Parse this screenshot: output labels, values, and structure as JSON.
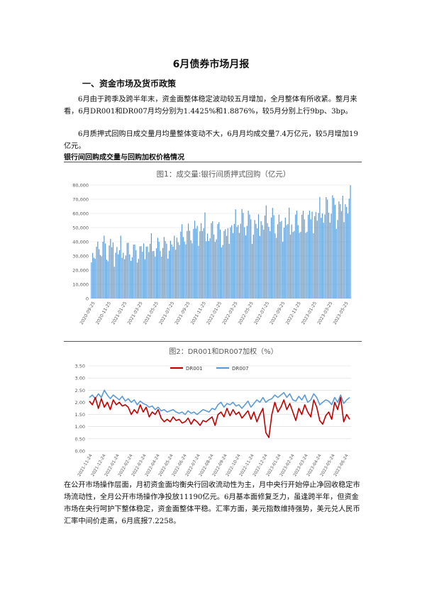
{
  "document": {
    "title": "6月债券市场月报",
    "section1_heading": "一、资金市场及货币政策",
    "para1": "6月由于跨季及跨半年末，资金面整体稳定波动较五月增加，全月整体有所收紧。整月来看，6月DR001和DR007月均分别为1.4425%和1.8876%，较5月分别上行9bp、3bp。",
    "para2": "6月质押式回购日成交量月均量整体变动不大，6月月均成交量7.4万亿元，较5月增加19亿元。",
    "figure_caption": "银行间回购成交量与回购加权价格情况",
    "para3": "在公开市场操作层面，月初资金面均衡央行回收流动性为主，月中央行开始停止净回收稳定市场流动性，全月公开市场操作净投放11190亿元。6月基本面修复乏力，虽逢跨半年，但资金市场在央行呵护下整体稳定，资金面整体平稳。汇率方面，美元指数维持强势，美元兑人民币汇率中间价走高，6月底报7.2258。"
  },
  "chart_data": [
    {
      "type": "bar",
      "title": "图1：成交量:银行间质押式回购（亿元）",
      "color": "#5B9BD5",
      "ylim": [
        0,
        80000
      ],
      "yticks": [
        "0",
        "10,000",
        "20,000",
        "30,000",
        "40,000",
        "50,000",
        "60,000",
        "70,000",
        "80,000"
      ],
      "x_tick_labels": [
        "2020-09-25",
        "2020-11-25",
        "2021-01-25",
        "2021-03-25",
        "2021-05-25",
        "2021-07-25",
        "2021-09-25",
        "2021-11-25",
        "2022-01-25",
        "2022-03-25",
        "2022-05-25",
        "2022-07-25",
        "2022-09-25",
        "2022-11-25",
        "2023-01-25",
        "2023-03-25",
        "2023-05-25"
      ],
      "monthly_peak": [
        41000,
        48000,
        49000,
        45000,
        42000,
        43000,
        44000,
        46000,
        45000,
        48000,
        47000,
        53000,
        56000,
        61000,
        62000,
        57000,
        59000,
        56000,
        63000,
        66000,
        68000,
        64000,
        66000,
        67000,
        65000,
        66000,
        64000,
        67000,
        70000,
        72000,
        75000,
        80000,
        79000,
        80000
      ],
      "monthly_trough": [
        21000,
        24000,
        23000,
        22000,
        22000,
        23000,
        24000,
        26000,
        25000,
        27000,
        28000,
        30000,
        33000,
        36000,
        37000,
        33000,
        35000,
        34000,
        37000,
        40000,
        41000,
        38000,
        40000,
        42000,
        40000,
        40000,
        38000,
        40000,
        43000,
        45000,
        46000,
        49000,
        48000,
        50000
      ],
      "grid": true
    },
    {
      "type": "line",
      "title": "图2：DR001和DR007加权（%）",
      "ylim": [
        0,
        3.5
      ],
      "yticks": [
        "0.00",
        "0.50",
        "1.00",
        "1.50",
        "2.00",
        "2.50",
        "3.00",
        "3.50"
      ],
      "x_tick_labels": [
        "2021-11-24",
        "2021-12-24",
        "2022-01-24",
        "2022-02-24",
        "2022-03-24",
        "2022-04-24",
        "2022-05-24",
        "2022-06-24",
        "2022-07-24",
        "2022-08-24",
        "2022-09-24",
        "2022-10-24",
        "2022-11-24",
        "2022-12-24",
        "2023-01-24",
        "2023-02-24",
        "2023-03-24",
        "2023-04-24",
        "2023-05-24",
        "2023-06-24"
      ],
      "series": [
        {
          "name": "DR001",
          "color": "#C00000",
          "values": [
            2.05,
            1.9,
            2.2,
            1.75,
            2.15,
            1.8,
            2.0,
            1.7,
            2.1,
            1.9,
            2.0,
            1.85,
            1.9,
            1.8,
            1.5,
            1.7,
            1.55,
            1.9,
            1.6,
            1.8,
            1.4,
            1.6,
            1.5,
            1.7,
            1.35,
            1.2,
            1.3,
            1.2,
            1.4,
            1.25,
            1.3,
            1.15,
            1.2,
            1.35,
            1.1,
            1.3,
            1.2,
            1.05,
            1.25,
            1.2,
            1.3,
            1.4,
            1.05,
            1.5,
            1.6,
            1.4,
            1.75,
            1.45,
            1.7,
            1.5,
            1.6,
            1.35,
            1.5,
            1.65,
            1.3,
            1.6,
            1.2,
            1.5,
            1.75,
            0.75,
            0.55,
            1.5,
            2.0,
            1.6,
            1.8,
            2.1,
            1.7,
            1.95,
            1.6,
            1.25,
            1.75,
            1.5,
            1.9,
            1.6,
            1.4,
            2.1,
            1.8,
            1.25,
            1.1,
            1.45,
            1.6,
            1.3,
            2.0,
            1.7,
            2.2,
            1.2,
            1.5,
            1.3
          ]
        },
        {
          "name": "DR007",
          "color": "#5B9BD5",
          "values": [
            2.2,
            2.3,
            2.15,
            2.35,
            2.2,
            2.5,
            2.3,
            2.15,
            2.3,
            2.2,
            2.1,
            2.25,
            2.05,
            2.15,
            2.0,
            2.1,
            1.9,
            2.05,
            1.95,
            1.9,
            1.8,
            1.85,
            1.7,
            1.8,
            1.65,
            1.7,
            1.6,
            1.65,
            1.7,
            1.6,
            1.55,
            1.6,
            1.5,
            1.65,
            1.55,
            1.6,
            1.5,
            1.6,
            1.7,
            1.65,
            1.6,
            1.75,
            1.7,
            1.9,
            2.0,
            1.8,
            1.95,
            1.9,
            2.0,
            1.85,
            1.9,
            1.75,
            1.9,
            2.05,
            1.8,
            1.95,
            2.1,
            2.0,
            2.2,
            2.0,
            2.1,
            2.15,
            2.3,
            2.2,
            2.3,
            2.4,
            2.2,
            2.35,
            2.1,
            2.05,
            2.25,
            2.1,
            2.3,
            2.0,
            2.1,
            2.35,
            2.2,
            1.9,
            2.0,
            2.1,
            2.05,
            1.9,
            2.2,
            2.0,
            2.3,
            1.95,
            2.1,
            2.2
          ]
        }
      ],
      "legend": "top-center",
      "grid": true
    }
  ]
}
